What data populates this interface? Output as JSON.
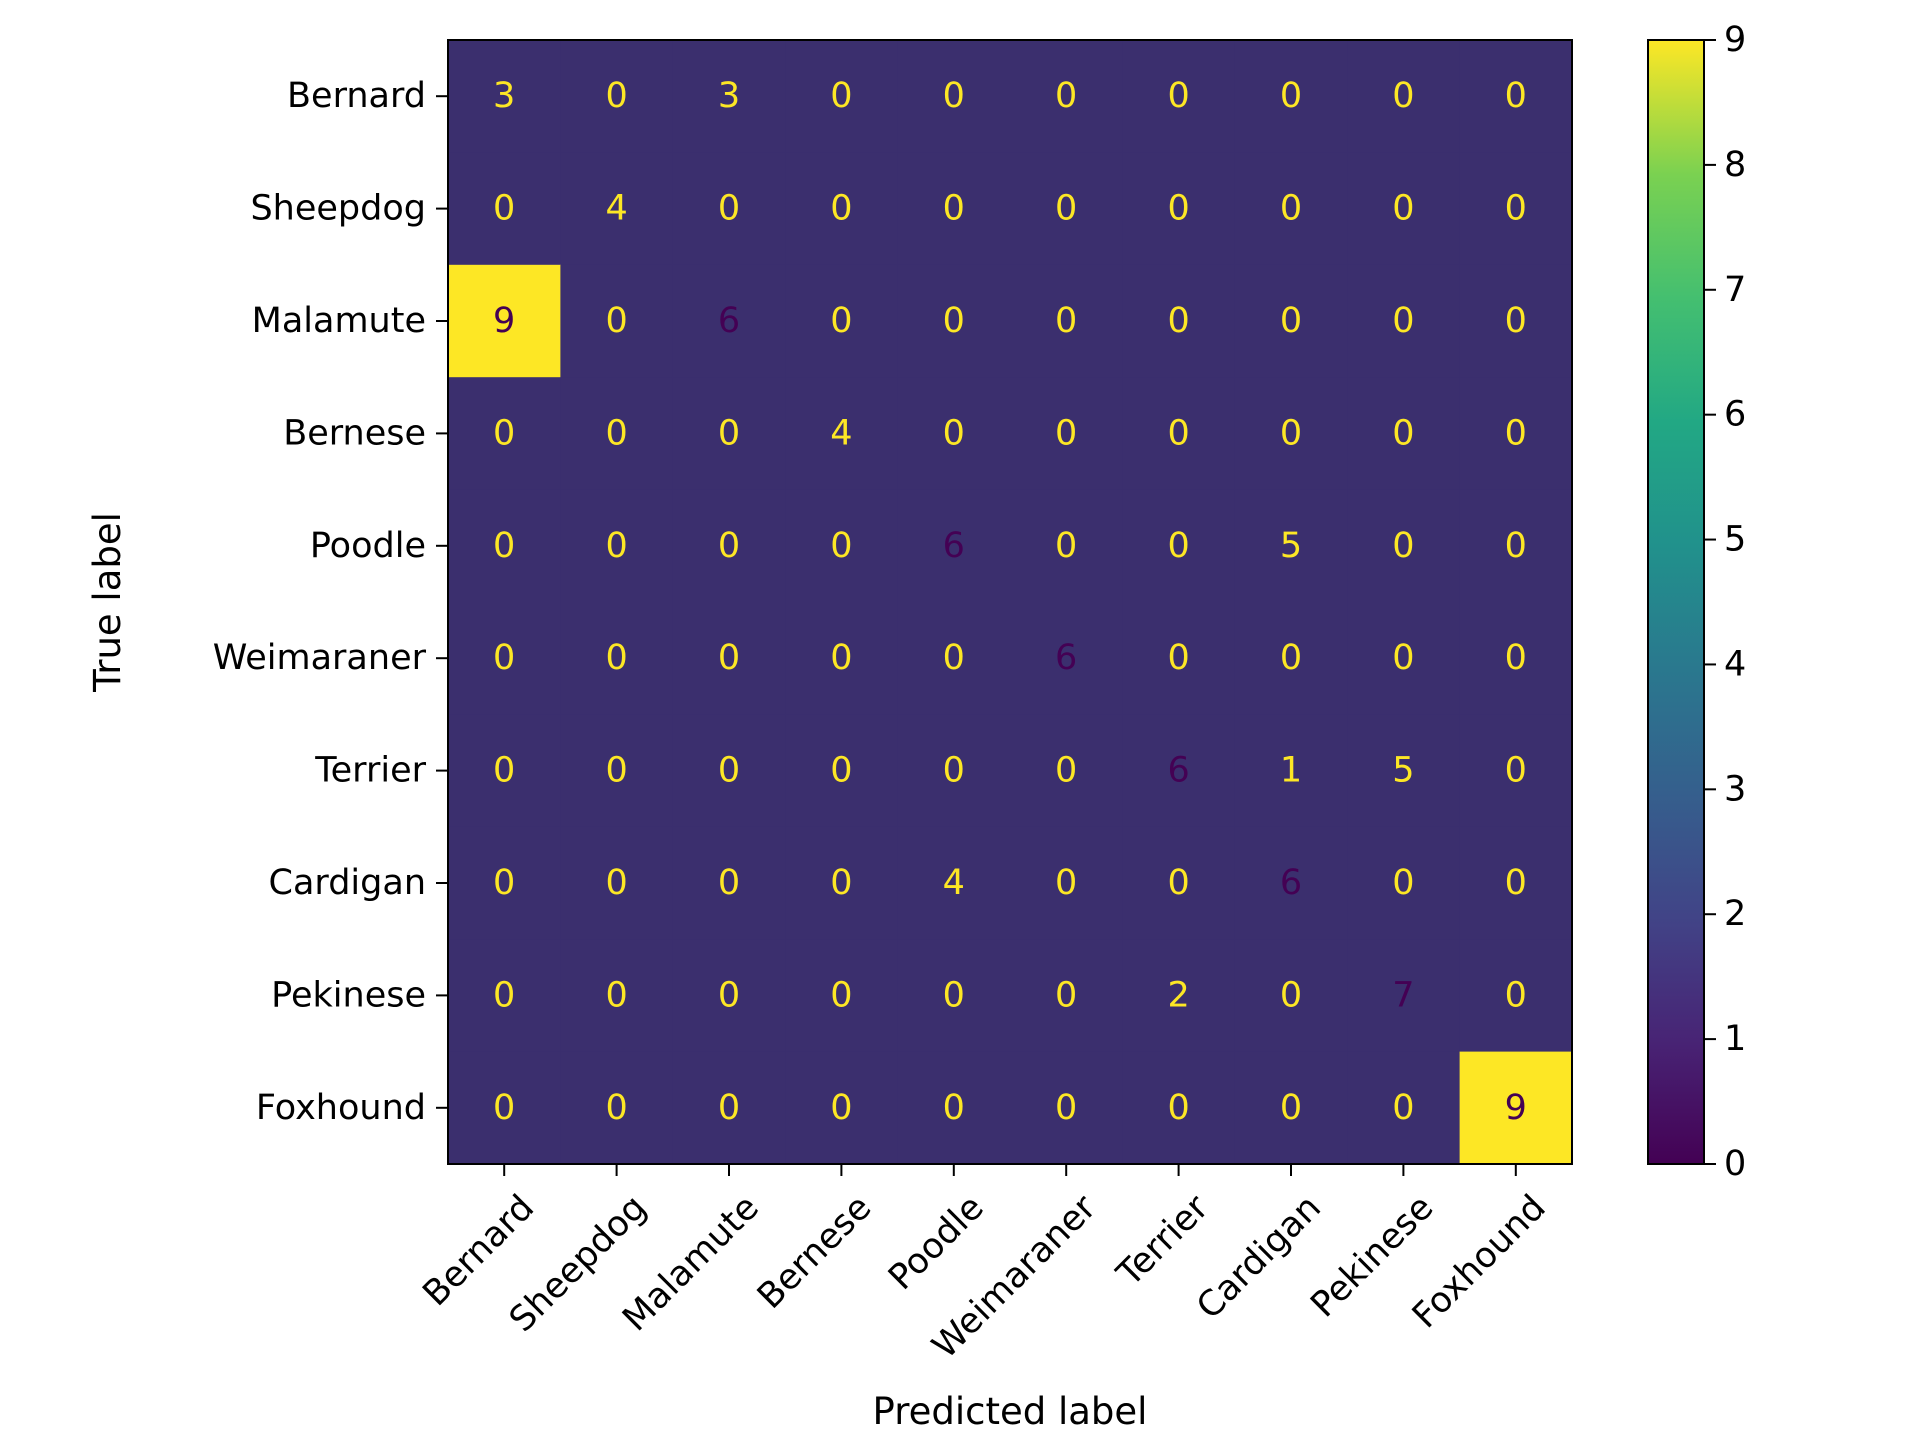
{
  "chart_data": {
    "type": "heatmap",
    "title": "",
    "xlabel": "Predicted label",
    "ylabel": "True label",
    "x_categories": [
      "Bernard",
      "Sheepdog",
      "Malamute",
      "Bernese",
      "Poodle",
      "Weimaraner",
      "Terrier",
      "Cardigan",
      "Pekinese",
      "Foxhound"
    ],
    "y_categories": [
      "Bernard",
      "Sheepdog",
      "Malamute",
      "Bernese",
      "Poodle",
      "Weimaraner",
      "Terrier",
      "Cardigan",
      "Pekinese",
      "Foxhound"
    ],
    "matrix": [
      [
        3,
        0,
        3,
        0,
        0,
        0,
        0,
        0,
        0,
        0
      ],
      [
        0,
        4,
        0,
        0,
        0,
        0,
        0,
        0,
        0,
        0
      ],
      [
        9,
        0,
        6,
        0,
        0,
        0,
        0,
        0,
        0,
        0
      ],
      [
        0,
        0,
        0,
        4,
        0,
        0,
        0,
        0,
        0,
        0
      ],
      [
        0,
        0,
        0,
        0,
        6,
        0,
        0,
        5,
        0,
        0
      ],
      [
        0,
        0,
        0,
        0,
        0,
        6,
        0,
        0,
        0,
        0
      ],
      [
        0,
        0,
        0,
        0,
        0,
        0,
        6,
        1,
        5,
        0
      ],
      [
        0,
        0,
        0,
        0,
        4,
        0,
        0,
        6,
        0,
        0
      ],
      [
        0,
        0,
        0,
        0,
        0,
        0,
        2,
        0,
        7,
        0
      ],
      [
        0,
        0,
        0,
        0,
        0,
        0,
        0,
        0,
        0,
        9
      ]
    ],
    "colormap": "viridis",
    "color_range": [
      0,
      9
    ],
    "colorbar_ticks": [
      "0",
      "1",
      "2",
      "3",
      "4",
      "5",
      "6",
      "7",
      "8",
      "9"
    ],
    "colors": {
      "background_cell": "#3b2f6e",
      "low_value_text": "#fde725",
      "high_value_text": "#440154",
      "axis": "#000000"
    },
    "grid": false
  }
}
